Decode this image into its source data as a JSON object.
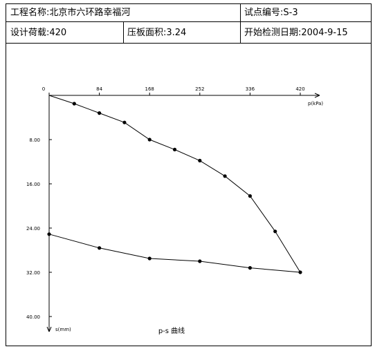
{
  "header": {
    "project": "工程名称:北京市六环路幸福河",
    "test_no": "试点编号:S-3",
    "design_load": "设计荷载:420",
    "plate_area": "压板面积:3.24",
    "start_date": "开始检测日期:2004-9-15"
  },
  "chart_data": {
    "type": "line",
    "title": "p-s 曲线",
    "xlabel": "p(kPa)",
    "ylabel": "s(mm)",
    "x_ticks": [
      "0",
      "84",
      "168",
      "252",
      "336",
      "420"
    ],
    "y_ticks": [
      "8.00",
      "16.00",
      "24.00",
      "32.00",
      "40.00"
    ],
    "xlim": [
      0,
      420
    ],
    "ylim": [
      0,
      40
    ],
    "y_inverted": true,
    "grid": false,
    "series": [
      {
        "points": [
          [
            0,
            0
          ],
          [
            42,
            1.5
          ],
          [
            84,
            3.2
          ],
          [
            126,
            4.9
          ],
          [
            168,
            8.0
          ],
          [
            210,
            9.8
          ],
          [
            252,
            11.8
          ],
          [
            294,
            14.6
          ],
          [
            336,
            18.2
          ],
          [
            378,
            24.6
          ],
          [
            420,
            32.0
          ],
          [
            336,
            31.2
          ],
          [
            252,
            30.0
          ],
          [
            168,
            29.5
          ],
          [
            84,
            27.6
          ],
          [
            0,
            25.1
          ]
        ]
      }
    ]
  }
}
